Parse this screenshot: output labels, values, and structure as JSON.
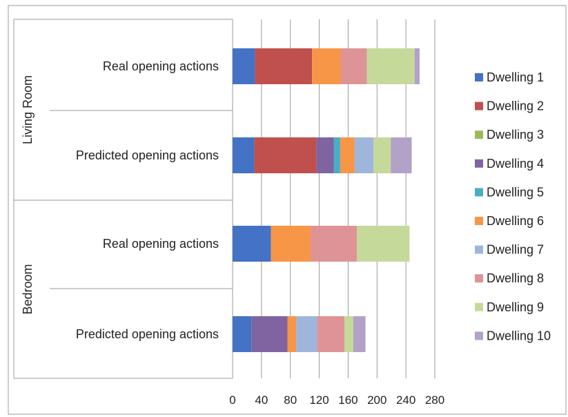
{
  "chart_data": {
    "type": "bar",
    "orientation": "horizontal",
    "stacked": true,
    "groups": [
      {
        "label": "Living Room",
        "categories": [
          "Real opening actions",
          "Predicted opening actions"
        ]
      },
      {
        "label": "Bedroom",
        "categories": [
          "Real opening actions",
          "Predicted opening actions"
        ]
      }
    ],
    "categories": [
      "Living Room / Real opening actions",
      "Living Room / Predicted opening actions",
      "Bedroom / Real opening actions",
      "Bedroom / Predicted opening actions"
    ],
    "series": [
      {
        "name": "Dwelling 1",
        "color": "#4472c4",
        "values": [
          31,
          30,
          53,
          26
        ]
      },
      {
        "name": "Dwelling 2",
        "color": "#c0504d",
        "values": [
          79,
          86,
          0,
          0
        ]
      },
      {
        "name": "Dwelling 3",
        "color": "#9bbb59",
        "values": [
          0,
          0,
          0,
          0
        ]
      },
      {
        "name": "Dwelling 4",
        "color": "#8064a2",
        "values": [
          0,
          24,
          0,
          50
        ]
      },
      {
        "name": "Dwelling 5",
        "color": "#4bacc6",
        "values": [
          0,
          9,
          0,
          0
        ]
      },
      {
        "name": "Dwelling 6",
        "color": "#f79646",
        "values": [
          40,
          20,
          55,
          12
        ]
      },
      {
        "name": "Dwelling 7",
        "color": "#9eb6dc",
        "values": [
          0,
          26,
          0,
          29
        ]
      },
      {
        "name": "Dwelling 8",
        "color": "#de9496",
        "values": [
          36,
          0,
          64,
          38
        ]
      },
      {
        "name": "Dwelling 9",
        "color": "#c5d99a",
        "values": [
          66,
          24,
          73,
          12
        ]
      },
      {
        "name": "Dwelling 10",
        "color": "#b3a2c7",
        "values": [
          7,
          29,
          0,
          17
        ]
      }
    ],
    "xlim": [
      0,
      280
    ],
    "xticks": [
      "0",
      "40",
      "80",
      "120",
      "160",
      "200",
      "240",
      "280"
    ],
    "grid": true,
    "legend_position": "right"
  }
}
